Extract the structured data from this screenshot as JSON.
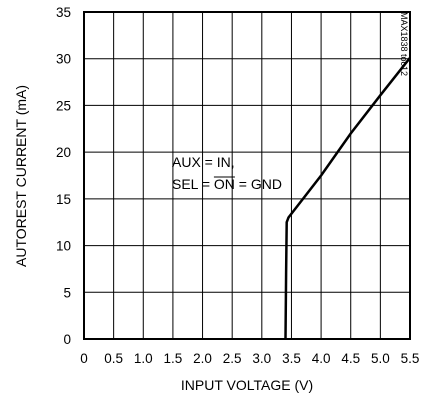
{
  "chart_data": {
    "type": "line",
    "xlabel": "INPUT VOLTAGE (V)",
    "ylabel": "AUTOREST CURRENT (mA)",
    "xlim": [
      0,
      5.5
    ],
    "ylim": [
      0,
      35
    ],
    "xticks": [
      "0",
      "0.5",
      "1.0",
      "1.5",
      "2.0",
      "2.5",
      "3.0",
      "3.5",
      "4.0",
      "4.5",
      "5.0",
      "5.5"
    ],
    "yticks": [
      "0",
      "5",
      "10",
      "15",
      "20",
      "25",
      "30",
      "35"
    ],
    "grid": true,
    "series": [
      {
        "x": [
          3.4,
          3.41,
          3.42,
          3.45,
          4.0,
          4.5,
          5.0,
          5.5
        ],
        "y": [
          0,
          7,
          12.5,
          13,
          17.5,
          22,
          26.1,
          30.1
        ]
      }
    ],
    "annotations": {
      "line1": "AUX = IN,",
      "line2_prefix": "SEL = ",
      "line2_overlined": "ON",
      "line2_suffix": " = GND"
    },
    "figure_tag": "MAX1838 toc12"
  }
}
